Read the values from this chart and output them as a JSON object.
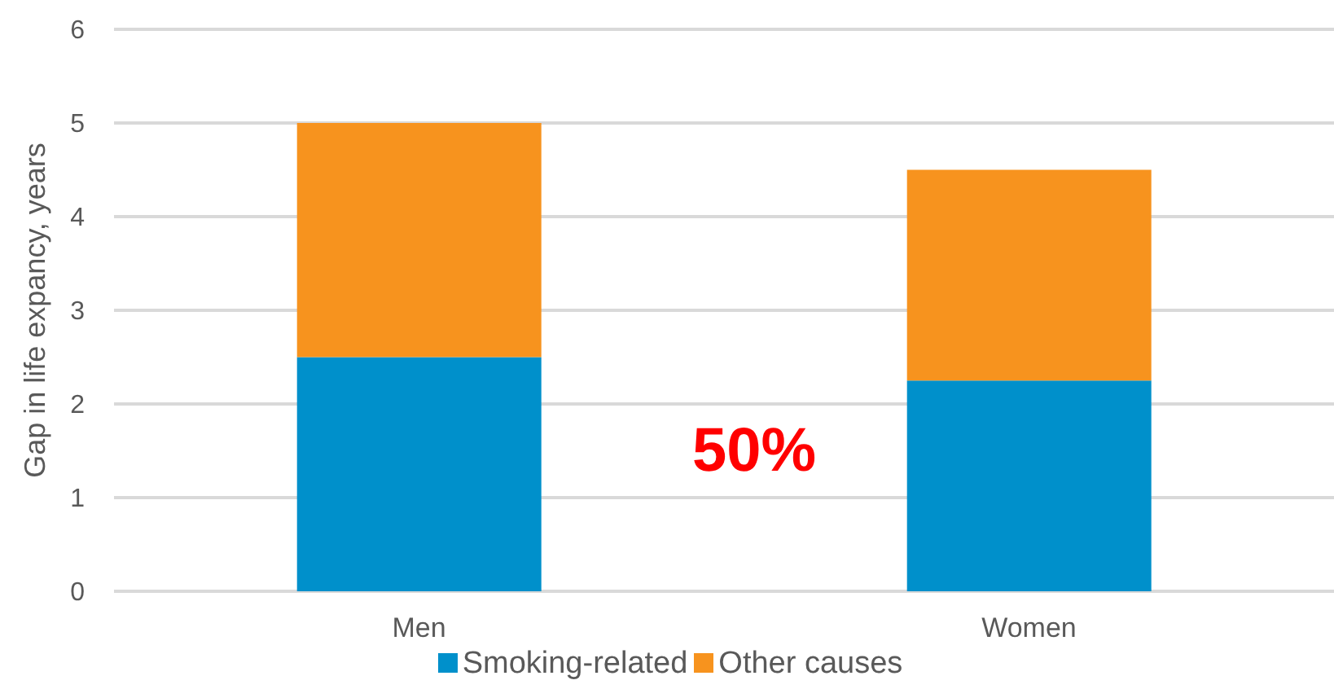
{
  "chart_data": {
    "type": "bar",
    "stacked": true,
    "categories": [
      "Men",
      "Women"
    ],
    "series": [
      {
        "name": "Smoking-related",
        "color": "#0090cb",
        "values": [
          2.5,
          2.25
        ]
      },
      {
        "name": "Other causes",
        "color": "#f7931e",
        "values": [
          2.5,
          2.25
        ]
      }
    ],
    "ylabel": "Gap in life expancy, years",
    "ylim": [
      0,
      6
    ],
    "yticks": [
      0,
      1,
      2,
      3,
      4,
      5,
      6
    ],
    "grid": "y",
    "legend": "bottom",
    "annotations": [
      "50%"
    ]
  }
}
